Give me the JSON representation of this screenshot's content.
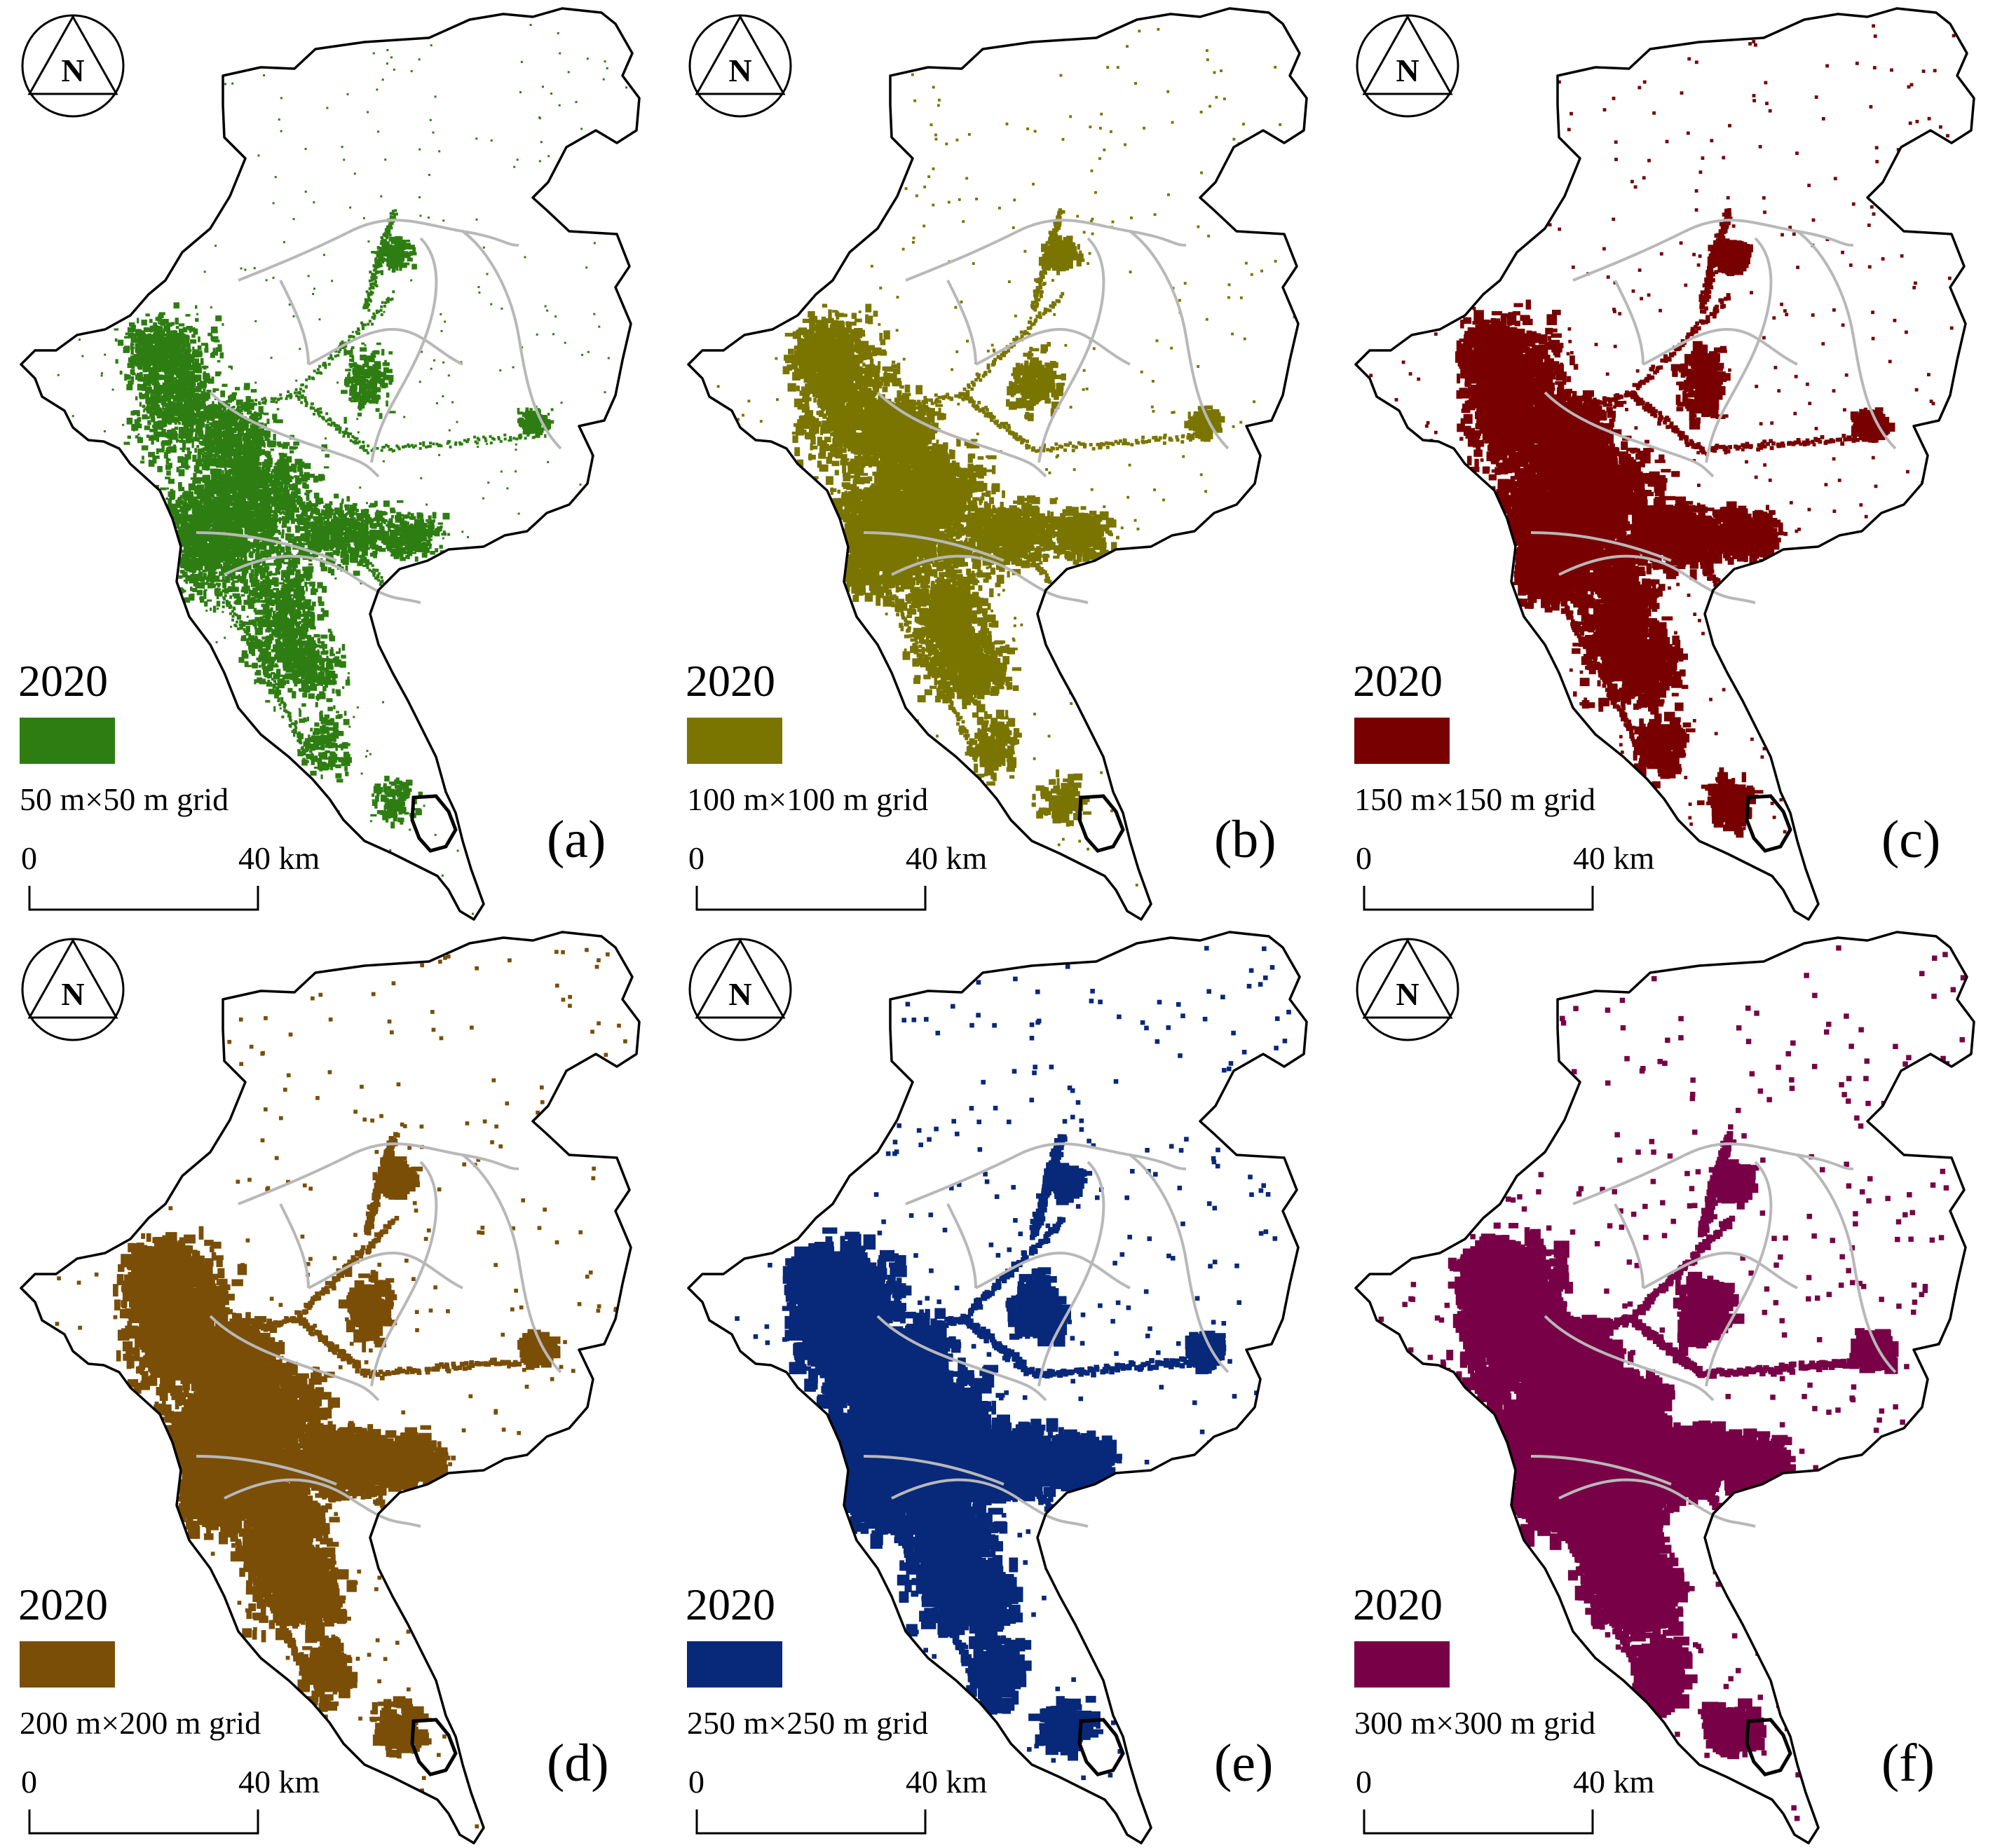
{
  "figure": {
    "panels": [
      {
        "letter": "(a)",
        "year": "2020",
        "grid_label": "50 m×50 m grid",
        "color": "#2e7d12"
      },
      {
        "letter": "(b)",
        "year": "2020",
        "grid_label": "100 m×100 m grid",
        "color": "#7a7500"
      },
      {
        "letter": "(c)",
        "year": "2020",
        "grid_label": "150 m×150 m grid",
        "color": "#780000"
      },
      {
        "letter": "(d)",
        "year": "2020",
        "grid_label": "200 m×200 m grid",
        "color": "#7a4e07"
      },
      {
        "letter": "(e)",
        "year": "2020",
        "grid_label": "250 m×250 m grid",
        "color": "#08287a"
      },
      {
        "letter": "(f)",
        "year": "2020",
        "grid_label": "300 m×300 m grid",
        "color": "#780046"
      }
    ],
    "north_label": "N",
    "scale_start": "0",
    "scale_end": "40 km",
    "boundary_color": "#000000",
    "district_line_color": "#b8b8b8"
  }
}
